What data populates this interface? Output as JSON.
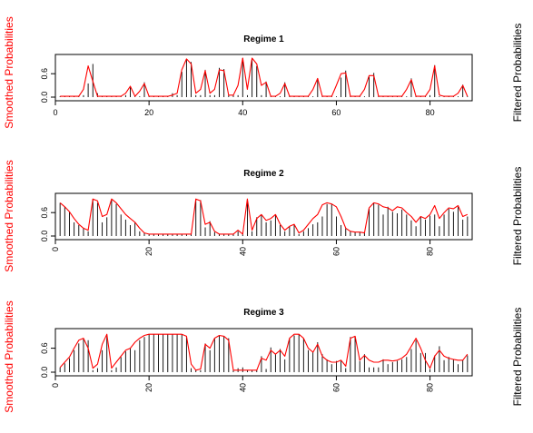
{
  "colors": {
    "smoothed": "#ff0000",
    "filtered": "#000000",
    "frame": "#000000"
  },
  "chart_data": [
    {
      "type": "line",
      "title": "Regime 1",
      "ylabel_left": "Smoothed Probabilities",
      "ylabel_right": "Filtered Probabilities",
      "xlim": [
        0,
        89
      ],
      "ylim": [
        0,
        1
      ],
      "xticks": [
        "0",
        "20",
        "40",
        "60",
        "80"
      ],
      "yticks": [
        "0.0",
        "0.6"
      ],
      "x_tick_orientation": "horizontal",
      "x": [
        1,
        2,
        3,
        4,
        5,
        6,
        7,
        8,
        9,
        10,
        11,
        12,
        13,
        14,
        15,
        16,
        17,
        18,
        19,
        20,
        21,
        22,
        23,
        24,
        25,
        26,
        27,
        28,
        29,
        30,
        31,
        32,
        33,
        34,
        35,
        36,
        37,
        38,
        39,
        40,
        41,
        42,
        43,
        44,
        45,
        46,
        47,
        48,
        49,
        50,
        51,
        52,
        53,
        54,
        55,
        56,
        57,
        58,
        59,
        60,
        61,
        62,
        63,
        64,
        65,
        66,
        67,
        68,
        69,
        70,
        71,
        72,
        73,
        74,
        75,
        76,
        77,
        78,
        79,
        80,
        81,
        82,
        83,
        84,
        85,
        86,
        87,
        88
      ],
      "series": [
        {
          "role": "filtered",
          "style": "histogram",
          "values": [
            0.02,
            0.02,
            0.02,
            0.02,
            0.02,
            0.05,
            0.35,
            0.85,
            0.1,
            0.02,
            0.02,
            0.02,
            0.02,
            0.02,
            0.05,
            0.28,
            0.02,
            0.02,
            0.38,
            0.02,
            0.02,
            0.02,
            0.02,
            0.02,
            0.1,
            0.05,
            0.65,
            0.98,
            0.9,
            0.05,
            0.05,
            0.7,
            0.05,
            0.05,
            0.75,
            0.72,
            0.05,
            0.05,
            0.05,
            1.0,
            0.05,
            1.0,
            0.8,
            0.05,
            0.4,
            0.02,
            0.02,
            0.02,
            0.38,
            0.02,
            0.02,
            0.02,
            0.02,
            0.02,
            0.02,
            0.48,
            0.02,
            0.02,
            0.02,
            0.02,
            0.5,
            0.68,
            0.02,
            0.02,
            0.02,
            0.02,
            0.52,
            0.62,
            0.02,
            0.02,
            0.02,
            0.02,
            0.02,
            0.02,
            0.02,
            0.48,
            0.02,
            0.02,
            0.02,
            0.05,
            0.82,
            0.02,
            0.02,
            0.02,
            0.02,
            0.02,
            0.32,
            0.02
          ]
        },
        {
          "role": "smoothed",
          "style": "line",
          "values": [
            0.02,
            0.02,
            0.02,
            0.02,
            0.02,
            0.2,
            0.8,
            0.4,
            0.02,
            0.02,
            0.02,
            0.02,
            0.02,
            0.02,
            0.1,
            0.28,
            0.02,
            0.15,
            0.35,
            0.02,
            0.02,
            0.02,
            0.02,
            0.02,
            0.05,
            0.1,
            0.7,
            0.98,
            0.85,
            0.1,
            0.2,
            0.68,
            0.1,
            0.2,
            0.7,
            0.68,
            0.05,
            0.05,
            0.3,
            1.0,
            0.2,
            1.0,
            0.85,
            0.3,
            0.38,
            0.02,
            0.02,
            0.1,
            0.35,
            0.02,
            0.02,
            0.02,
            0.02,
            0.02,
            0.2,
            0.48,
            0.02,
            0.02,
            0.02,
            0.3,
            0.6,
            0.62,
            0.02,
            0.02,
            0.02,
            0.2,
            0.55,
            0.55,
            0.02,
            0.02,
            0.02,
            0.02,
            0.02,
            0.02,
            0.2,
            0.45,
            0.02,
            0.02,
            0.02,
            0.2,
            0.8,
            0.05,
            0.02,
            0.02,
            0.02,
            0.1,
            0.3,
            0.02
          ]
        }
      ]
    },
    {
      "type": "line",
      "title": "Regime 2",
      "ylabel_left": "Smoothed Probabilities",
      "ylabel_right": "Filtered Probabilities",
      "xlim": [
        0,
        89
      ],
      "ylim": [
        0,
        1
      ],
      "xticks": [
        "0",
        "20",
        "40",
        "60",
        "80"
      ],
      "yticks": [
        "0.0",
        "0.6"
      ],
      "x_tick_orientation": "vertical",
      "x": [
        1,
        2,
        3,
        4,
        5,
        6,
        7,
        8,
        9,
        10,
        11,
        12,
        13,
        14,
        15,
        16,
        17,
        18,
        19,
        20,
        21,
        22,
        23,
        24,
        25,
        26,
        27,
        28,
        29,
        30,
        31,
        32,
        33,
        34,
        35,
        36,
        37,
        38,
        39,
        40,
        41,
        42,
        43,
        44,
        45,
        46,
        47,
        48,
        49,
        50,
        51,
        52,
        53,
        54,
        55,
        56,
        57,
        58,
        59,
        60,
        61,
        62,
        63,
        64,
        65,
        66,
        67,
        68,
        69,
        70,
        71,
        72,
        73,
        74,
        75,
        76,
        77,
        78,
        79,
        80,
        81,
        82,
        83,
        84,
        85,
        86,
        87,
        88
      ],
      "series": [
        {
          "role": "filtered",
          "style": "histogram",
          "values": [
            0.85,
            0.75,
            0.62,
            0.35,
            0.28,
            0.2,
            0.12,
            0.95,
            0.85,
            0.35,
            0.48,
            0.92,
            0.82,
            0.55,
            0.42,
            0.28,
            0.35,
            0.12,
            0.08,
            0.04,
            0.04,
            0.04,
            0.04,
            0.04,
            0.04,
            0.04,
            0.04,
            0.04,
            0.04,
            0.9,
            0.92,
            0.22,
            0.38,
            0.1,
            0.05,
            0.05,
            0.05,
            0.05,
            0.12,
            0.04,
            0.94,
            0.12,
            0.48,
            0.55,
            0.35,
            0.4,
            0.55,
            0.28,
            0.12,
            0.25,
            0.28,
            0.05,
            0.12,
            0.2,
            0.3,
            0.35,
            0.5,
            0.82,
            0.82,
            0.5,
            0.28,
            0.2,
            0.12,
            0.1,
            0.1,
            0.08,
            0.7,
            0.85,
            0.8,
            0.55,
            0.75,
            0.62,
            0.58,
            0.68,
            0.55,
            0.4,
            0.25,
            0.5,
            0.42,
            0.52,
            0.55,
            0.25,
            0.55,
            0.7,
            0.62,
            0.75,
            0.42,
            0.5
          ]
        },
        {
          "role": "smoothed",
          "style": "line",
          "values": [
            0.85,
            0.75,
            0.62,
            0.45,
            0.3,
            0.2,
            0.15,
            0.95,
            0.9,
            0.5,
            0.55,
            0.95,
            0.85,
            0.7,
            0.55,
            0.45,
            0.35,
            0.2,
            0.08,
            0.05,
            0.05,
            0.05,
            0.05,
            0.05,
            0.05,
            0.05,
            0.05,
            0.05,
            0.05,
            0.95,
            0.9,
            0.3,
            0.35,
            0.12,
            0.05,
            0.05,
            0.05,
            0.05,
            0.15,
            0.05,
            0.95,
            0.15,
            0.45,
            0.55,
            0.4,
            0.45,
            0.55,
            0.3,
            0.15,
            0.25,
            0.3,
            0.08,
            0.15,
            0.3,
            0.45,
            0.55,
            0.8,
            0.85,
            0.82,
            0.75,
            0.5,
            0.2,
            0.12,
            0.1,
            0.1,
            0.08,
            0.72,
            0.85,
            0.82,
            0.75,
            0.72,
            0.65,
            0.75,
            0.72,
            0.6,
            0.5,
            0.35,
            0.5,
            0.45,
            0.55,
            0.78,
            0.45,
            0.6,
            0.72,
            0.7,
            0.78,
            0.5,
            0.55
          ]
        }
      ]
    },
    {
      "type": "line",
      "title": "Regime 3",
      "ylabel_left": "Smoothed Probabilities",
      "ylabel_right": "Filtered Probabilities",
      "xlim": [
        0,
        89
      ],
      "ylim": [
        0,
        1
      ],
      "xticks": [
        "0",
        "20",
        "40",
        "60",
        "80"
      ],
      "yticks": [
        "0.0",
        "0.6"
      ],
      "x_tick_orientation": "vertical",
      "x": [
        1,
        2,
        3,
        4,
        5,
        6,
        7,
        8,
        9,
        10,
        11,
        12,
        13,
        14,
        15,
        16,
        17,
        18,
        19,
        20,
        21,
        22,
        23,
        24,
        25,
        26,
        27,
        28,
        29,
        30,
        31,
        32,
        33,
        34,
        35,
        36,
        37,
        38,
        39,
        40,
        41,
        42,
        43,
        44,
        45,
        46,
        47,
        48,
        49,
        50,
        51,
        52,
        53,
        54,
        55,
        56,
        57,
        58,
        59,
        60,
        61,
        62,
        63,
        64,
        65,
        66,
        67,
        68,
        69,
        70,
        71,
        72,
        73,
        74,
        75,
        76,
        77,
        78,
        79,
        80,
        81,
        82,
        83,
        84,
        85,
        86,
        87,
        88
      ],
      "series": [
        {
          "role": "filtered",
          "style": "histogram",
          "values": [
            0.12,
            0.22,
            0.35,
            0.55,
            0.72,
            0.85,
            0.8,
            0.05,
            0.1,
            0.55,
            0.92,
            0.05,
            0.12,
            0.38,
            0.52,
            0.6,
            0.55,
            0.8,
            0.88,
            0.95,
            0.95,
            0.95,
            0.95,
            0.95,
            0.95,
            0.95,
            0.95,
            0.9,
            0.1,
            0.05,
            0.05,
            0.72,
            0.55,
            0.85,
            0.92,
            0.9,
            0.85,
            0.05,
            0.1,
            0.12,
            0.05,
            0.05,
            0.05,
            0.4,
            0.08,
            0.62,
            0.45,
            0.58,
            0.32,
            0.85,
            0.92,
            0.95,
            0.85,
            0.55,
            0.5,
            0.75,
            0.45,
            0.32,
            0.2,
            0.28,
            0.28,
            0.1,
            0.88,
            0.9,
            0.28,
            0.45,
            0.12,
            0.12,
            0.12,
            0.32,
            0.2,
            0.25,
            0.28,
            0.32,
            0.38,
            0.58,
            0.8,
            0.48,
            0.48,
            0.08,
            0.42,
            0.65,
            0.3,
            0.38,
            0.32,
            0.2,
            0.3,
            0.42
          ]
        },
        {
          "role": "smoothed",
          "style": "line",
          "values": [
            0.12,
            0.25,
            0.38,
            0.6,
            0.8,
            0.85,
            0.6,
            0.1,
            0.2,
            0.7,
            0.95,
            0.1,
            0.25,
            0.4,
            0.55,
            0.6,
            0.75,
            0.85,
            0.92,
            0.95,
            0.95,
            0.95,
            0.95,
            0.95,
            0.95,
            0.95,
            0.95,
            0.9,
            0.2,
            0.05,
            0.08,
            0.7,
            0.6,
            0.85,
            0.92,
            0.9,
            0.8,
            0.05,
            0.05,
            0.05,
            0.05,
            0.05,
            0.05,
            0.35,
            0.3,
            0.55,
            0.45,
            0.55,
            0.4,
            0.85,
            0.95,
            0.95,
            0.85,
            0.6,
            0.5,
            0.7,
            0.4,
            0.3,
            0.25,
            0.25,
            0.3,
            0.15,
            0.85,
            0.9,
            0.3,
            0.42,
            0.3,
            0.25,
            0.25,
            0.3,
            0.3,
            0.28,
            0.3,
            0.35,
            0.45,
            0.65,
            0.85,
            0.6,
            0.3,
            0.1,
            0.4,
            0.55,
            0.4,
            0.35,
            0.32,
            0.3,
            0.3,
            0.45
          ]
        }
      ]
    }
  ]
}
